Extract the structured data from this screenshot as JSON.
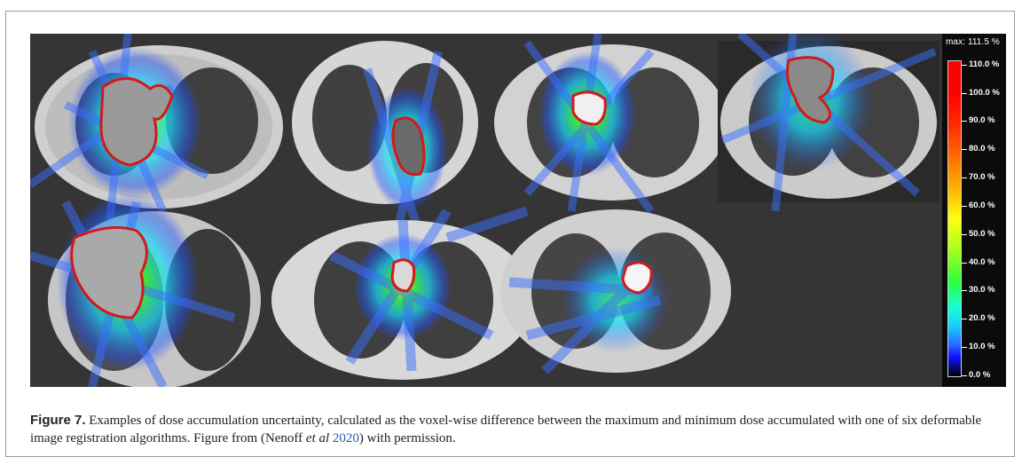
{
  "figure": {
    "panels": [
      {
        "name": "ct-slice-1"
      },
      {
        "name": "ct-slice-2"
      },
      {
        "name": "ct-slice-3"
      },
      {
        "name": "ct-slice-4"
      },
      {
        "name": "ct-slice-5"
      },
      {
        "name": "ct-slice-6"
      },
      {
        "name": "ct-slice-7"
      }
    ],
    "colorbar": {
      "max_label": "max: 111.5 %",
      "ticks": [
        "110.0 %",
        "100.0 %",
        "90.0 %",
        "80.0 %",
        "70.0 %",
        "60.0 %",
        "50.0 %",
        "40.0 %",
        "30.0 %",
        "20.0 %",
        "10.0 %",
        "0.0 %"
      ],
      "tick_values": [
        110,
        100,
        90,
        80,
        70,
        60,
        50,
        40,
        30,
        20,
        10,
        0
      ],
      "range": [
        0,
        111.5
      ],
      "colors": [
        "#000000",
        "#1010ff",
        "#14d0ff",
        "#2bff3a",
        "#ffff10",
        "#ff6a00",
        "#ff0000"
      ]
    }
  },
  "caption": {
    "label": "Figure 7.",
    "text_before": " Examples of dose accumulation uncertainty, calculated as the voxel-wise difference between the maximum and minimum dose accumulated with one of six deformable image registration algorithms. Figure from (Nenoff ",
    "etal": "et al",
    "year": "2020",
    "text_after": ") with permission."
  }
}
